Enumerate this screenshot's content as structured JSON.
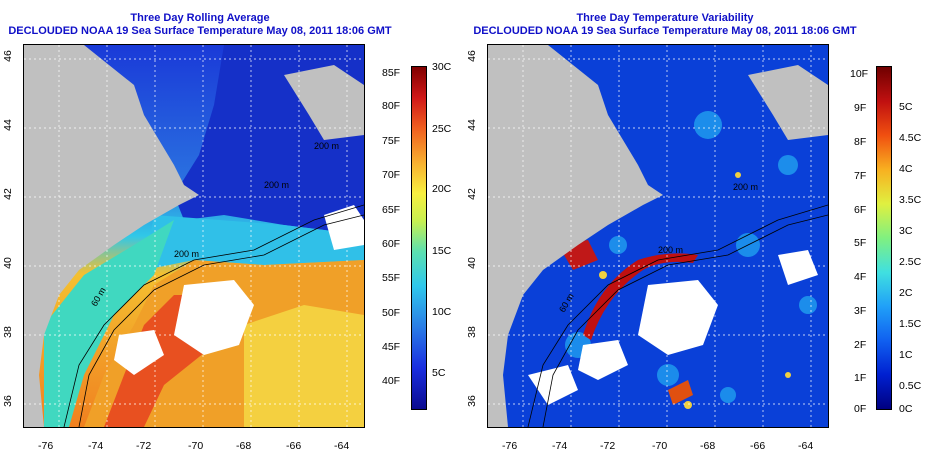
{
  "panels": [
    {
      "id": "avg",
      "title1": "Three Day Rolling Average",
      "title2": "DECLOUDED NOAA 19 Sea Surface Temperature May 08, 2011 18:06 GMT",
      "colorbar_left_labels": [
        "85F",
        "80F",
        "75F",
        "70F",
        "65F",
        "60F",
        "55F",
        "50F",
        "45F",
        "40F"
      ],
      "colorbar_right_labels": [
        "30C",
        "25C",
        "20C",
        "15C",
        "10C",
        "5C"
      ]
    },
    {
      "id": "var",
      "title1": "Three Day Temperature Variability",
      "title2": "DECLOUDED NOAA 19 Sea Surface Temperature May 08, 2011 18:06 GMT",
      "colorbar_left_labels": [
        "10F",
        "9F",
        "8F",
        "7F",
        "6F",
        "5F",
        "4F",
        "3F",
        "2F",
        "1F",
        "0F"
      ],
      "colorbar_right_labels": [
        "5C",
        "4.5C",
        "4C",
        "3.5C",
        "3C",
        "2.5C",
        "2C",
        "1.5C",
        "1C",
        "0.5C",
        "0C"
      ]
    }
  ],
  "x_axis_labels": [
    "-76",
    "-74",
    "-72",
    "-70",
    "-68",
    "-66",
    "-64"
  ],
  "y_axis_labels": [
    "46",
    "44",
    "42",
    "40",
    "38",
    "36"
  ],
  "contour_labels": {
    "avg": [
      "200 m",
      "200 m",
      "200 m",
      "60 m"
    ],
    "var": [
      "200 m",
      "200 m",
      "60 m"
    ]
  },
  "colors": {
    "title": "#1010c8",
    "land": "#c0c0c0",
    "cloud": "#ffffff",
    "sst_scale": [
      "#0b0b8f",
      "#1a2ee0",
      "#2a7de6",
      "#2fc8ec",
      "#5ce0b0",
      "#c8f050",
      "#f8f040",
      "#f8b030",
      "#f06020",
      "#d01818",
      "#800000"
    ],
    "var_scale": [
      "#000080",
      "#0020d0",
      "#1060f0",
      "#20a0f8",
      "#40e0e0",
      "#80f080",
      "#e0f040",
      "#f8b020",
      "#f05010",
      "#c01010",
      "#700000"
    ]
  }
}
